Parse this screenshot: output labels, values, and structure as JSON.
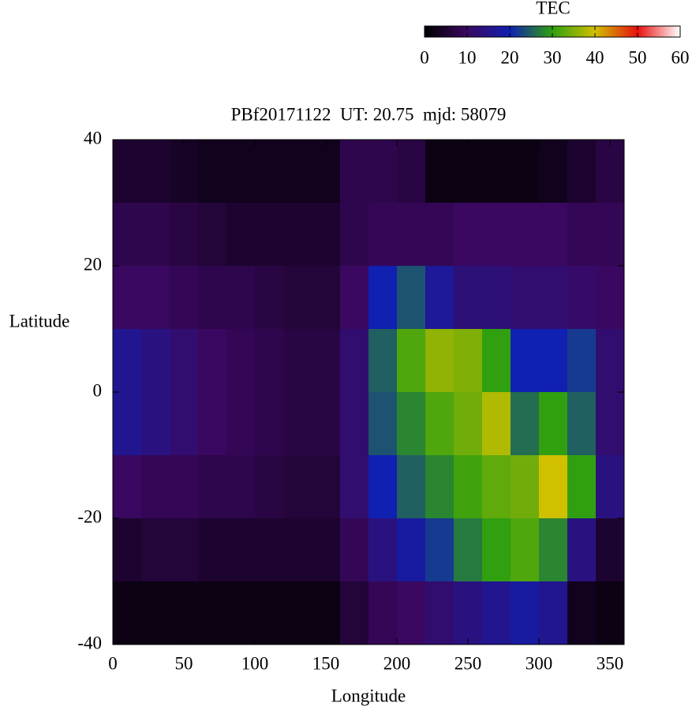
{
  "chart_data": {
    "type": "heatmap",
    "title": "PBf20171122  UT: 20.75  mjd: 58079",
    "x_label": "Longitude",
    "y_label": "Latitude",
    "xlim": [
      0,
      360
    ],
    "ylim": [
      -40,
      40
    ],
    "xticks": [
      0,
      50,
      100,
      150,
      200,
      250,
      300,
      350
    ],
    "yticks": [
      -40,
      -20,
      0,
      20,
      40
    ],
    "xbins": [
      0,
      20,
      40,
      60,
      80,
      100,
      120,
      140,
      160,
      180,
      200,
      220,
      240,
      260,
      280,
      300,
      320,
      340,
      360
    ],
    "ybins": [
      40,
      30,
      20,
      10,
      0,
      -10,
      -20,
      -30,
      -40
    ],
    "z": [
      [
        5,
        5,
        4,
        3,
        3,
        3,
        3,
        3,
        8,
        8,
        7,
        2,
        2,
        2,
        2,
        3,
        5,
        7
      ],
      [
        8,
        8,
        7,
        6,
        5,
        5,
        5,
        5,
        8,
        9,
        9,
        9,
        10,
        10,
        10,
        10,
        9,
        9
      ],
      [
        10,
        10,
        9,
        8,
        8,
        7,
        6,
        6,
        10,
        20,
        24,
        17,
        13,
        13,
        12,
        12,
        11,
        10
      ],
      [
        16,
        14,
        12,
        10,
        9,
        8,
        7,
        7,
        12,
        25,
        32,
        36,
        35,
        30,
        20,
        20,
        22,
        12
      ],
      [
        16,
        14,
        12,
        10,
        9,
        8,
        7,
        7,
        12,
        24,
        28,
        32,
        34,
        38,
        26,
        30,
        25,
        12
      ],
      [
        10,
        9,
        9,
        8,
        8,
        7,
        6,
        6,
        12,
        20,
        25,
        28,
        31,
        33,
        34,
        40,
        30,
        14
      ],
      [
        5,
        6,
        6,
        5,
        5,
        5,
        5,
        5,
        9,
        14,
        18,
        22,
        27,
        30,
        32,
        28,
        14,
        5
      ],
      [
        2,
        2,
        2,
        2,
        2,
        2,
        2,
        2,
        6,
        9,
        10,
        12,
        14,
        16,
        18,
        16,
        3,
        2
      ]
    ],
    "colorbar_label": "TEC",
    "clim": [
      0,
      60
    ],
    "cticks": [
      0,
      10,
      20,
      30,
      40,
      50,
      60
    ],
    "colormap": [
      "#000000",
      "#3a0860",
      "#1020b0",
      "#30a010",
      "#d0c000",
      "#e81010",
      "#ffffff"
    ]
  }
}
